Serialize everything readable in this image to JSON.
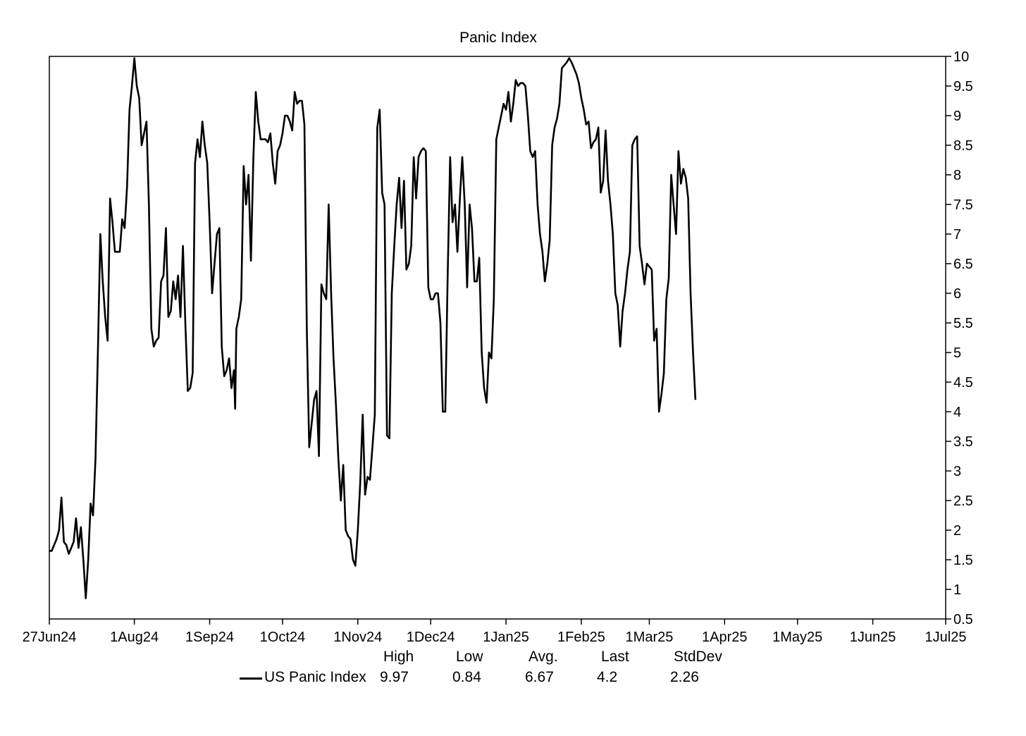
{
  "chart_data": {
    "type": "line",
    "title": "Panic Index",
    "xlabel": "",
    "ylabel": "",
    "x_start": "27Jun24",
    "x_end": "1Jul25",
    "x_ticks": [
      {
        "label": "27Jun24",
        "day": 0
      },
      {
        "label": "1Aug24",
        "day": 35
      },
      {
        "label": "1Sep24",
        "day": 66
      },
      {
        "label": "1Oct24",
        "day": 96
      },
      {
        "label": "1Nov24",
        "day": 127
      },
      {
        "label": "1Dec24",
        "day": 157
      },
      {
        "label": "1Jan25",
        "day": 188
      },
      {
        "label": "1Feb25",
        "day": 219
      },
      {
        "label": "1Mar25",
        "day": 247
      },
      {
        "label": "1Apr25",
        "day": 278
      },
      {
        "label": "1May25",
        "day": 308
      },
      {
        "label": "1Jun25",
        "day": 339
      },
      {
        "label": "1Jul25",
        "day": 369
      }
    ],
    "xlim": [
      0,
      369
    ],
    "ylim": [
      0.5,
      10
    ],
    "y_ticks": [
      "0.5",
      "1",
      "1.5",
      "2",
      "2.5",
      "3",
      "3.5",
      "4",
      "4.5",
      "5",
      "5.5",
      "6",
      "6.5",
      "7",
      "7.5",
      "8",
      "8.5",
      "9",
      "9.5",
      "10"
    ],
    "y_axis_side": "right",
    "grid": false,
    "legend": "bottom",
    "series": [
      {
        "name": "US Panic Index",
        "color": "#000000",
        "points": [
          [
            0,
            1.65
          ],
          [
            1,
            1.65
          ],
          [
            3,
            1.85
          ],
          [
            4,
            2.0
          ],
          [
            5,
            2.55
          ],
          [
            6,
            1.8
          ],
          [
            7,
            1.75
          ],
          [
            8,
            1.6
          ],
          [
            10,
            1.8
          ],
          [
            11,
            2.2
          ],
          [
            12,
            1.7
          ],
          [
            13,
            2.05
          ],
          [
            14,
            1.5
          ],
          [
            15,
            0.85
          ],
          [
            16,
            1.5
          ],
          [
            17,
            2.45
          ],
          [
            18,
            2.25
          ],
          [
            19,
            3.2
          ],
          [
            20,
            5.0
          ],
          [
            21,
            7.0
          ],
          [
            22,
            6.2
          ],
          [
            23,
            5.6
          ],
          [
            24,
            5.2
          ],
          [
            25,
            7.6
          ],
          [
            26,
            7.2
          ],
          [
            27,
            6.7
          ],
          [
            28,
            6.7
          ],
          [
            29,
            6.7
          ],
          [
            30,
            7.25
          ],
          [
            31,
            7.1
          ],
          [
            32,
            7.8
          ],
          [
            33,
            9.1
          ],
          [
            34,
            9.5
          ],
          [
            35,
            9.97
          ],
          [
            36,
            9.5
          ],
          [
            37,
            9.3
          ],
          [
            38,
            8.5
          ],
          [
            39,
            8.7
          ],
          [
            40,
            8.9
          ],
          [
            41,
            7.5
          ],
          [
            42,
            5.4
          ],
          [
            43,
            5.1
          ],
          [
            44,
            5.2
          ],
          [
            45,
            5.25
          ],
          [
            46,
            6.2
          ],
          [
            47,
            6.3
          ],
          [
            48,
            7.1
          ],
          [
            49,
            5.6
          ],
          [
            50,
            5.7
          ],
          [
            51,
            6.2
          ],
          [
            52,
            5.9
          ],
          [
            53,
            6.3
          ],
          [
            54,
            5.6
          ],
          [
            55,
            6.8
          ],
          [
            56,
            5.5
          ],
          [
            57,
            4.35
          ],
          [
            58,
            4.4
          ],
          [
            59,
            4.65
          ],
          [
            60,
            8.2
          ],
          [
            61,
            8.6
          ],
          [
            62,
            8.3
          ],
          [
            63,
            8.9
          ],
          [
            64,
            8.5
          ],
          [
            65,
            8.2
          ],
          [
            66,
            7.2
          ],
          [
            67,
            6.0
          ],
          [
            68,
            6.5
          ],
          [
            69,
            7.0
          ],
          [
            70,
            7.1
          ],
          [
            71,
            5.1
          ],
          [
            72,
            4.6
          ],
          [
            73,
            4.7
          ],
          [
            74,
            4.9
          ],
          [
            75,
            4.4
          ],
          [
            76,
            4.7
          ],
          [
            76.5,
            4.05
          ],
          [
            77,
            5.4
          ],
          [
            78,
            5.6
          ],
          [
            79,
            5.9
          ],
          [
            80,
            8.15
          ],
          [
            81,
            7.5
          ],
          [
            82,
            8.0
          ],
          [
            83,
            6.55
          ],
          [
            84,
            8.3
          ],
          [
            85,
            9.4
          ],
          [
            86,
            8.9
          ],
          [
            87,
            8.6
          ],
          [
            88,
            8.6
          ],
          [
            89,
            8.6
          ],
          [
            90,
            8.55
          ],
          [
            91,
            8.7
          ],
          [
            92,
            8.2
          ],
          [
            93,
            7.85
          ],
          [
            94,
            8.4
          ],
          [
            95,
            8.5
          ],
          [
            96,
            8.7
          ],
          [
            97,
            9.0
          ],
          [
            98,
            9.0
          ],
          [
            99,
            8.9
          ],
          [
            100,
            8.75
          ],
          [
            101,
            9.4
          ],
          [
            102,
            9.2
          ],
          [
            103,
            9.25
          ],
          [
            104,
            9.25
          ],
          [
            105,
            8.85
          ],
          [
            106,
            5.4
          ],
          [
            107,
            3.4
          ],
          [
            108,
            3.8
          ],
          [
            109,
            4.2
          ],
          [
            110,
            4.35
          ],
          [
            111,
            3.25
          ],
          [
            112,
            6.15
          ],
          [
            113,
            6.0
          ],
          [
            114,
            5.9
          ],
          [
            115,
            7.5
          ],
          [
            116,
            6.0
          ],
          [
            117,
            4.9
          ],
          [
            118,
            4.1
          ],
          [
            119,
            3.2
          ],
          [
            120,
            2.5
          ],
          [
            121,
            3.1
          ],
          [
            122,
            2.0
          ],
          [
            123,
            1.9
          ],
          [
            124,
            1.85
          ],
          [
            125,
            1.5
          ],
          [
            126,
            1.4
          ],
          [
            127,
            2.0
          ],
          [
            128,
            2.8
          ],
          [
            129,
            3.95
          ],
          [
            130,
            2.6
          ],
          [
            131,
            2.9
          ],
          [
            132,
            2.85
          ],
          [
            133,
            3.4
          ],
          [
            134,
            3.95
          ],
          [
            135,
            8.8
          ],
          [
            136,
            9.1
          ],
          [
            137,
            7.7
          ],
          [
            138,
            7.5
          ],
          [
            139,
            3.6
          ],
          [
            140,
            3.55
          ],
          [
            141,
            6.0
          ],
          [
            142,
            6.8
          ],
          [
            143,
            7.5
          ],
          [
            144,
            7.95
          ],
          [
            145,
            7.1
          ],
          [
            146,
            7.9
          ],
          [
            147,
            6.4
          ],
          [
            148,
            6.5
          ],
          [
            149,
            6.8
          ],
          [
            150,
            8.3
          ],
          [
            151,
            7.6
          ],
          [
            152,
            8.3
          ],
          [
            153,
            8.4
          ],
          [
            154,
            8.45
          ],
          [
            155,
            8.4
          ],
          [
            156,
            6.1
          ],
          [
            157,
            5.9
          ],
          [
            158,
            5.9
          ],
          [
            159,
            6.0
          ],
          [
            160,
            6.0
          ],
          [
            161,
            5.5
          ],
          [
            162,
            4.0
          ],
          [
            163,
            4.0
          ],
          [
            164,
            6.3
          ],
          [
            165,
            8.3
          ],
          [
            166,
            7.2
          ],
          [
            167,
            7.5
          ],
          [
            168,
            6.7
          ],
          [
            169,
            7.6
          ],
          [
            170,
            8.3
          ],
          [
            171,
            7.5
          ],
          [
            172,
            6.1
          ],
          [
            173,
            7.5
          ],
          [
            174,
            7.1
          ],
          [
            175,
            6.2
          ],
          [
            176,
            6.2
          ],
          [
            177,
            6.6
          ],
          [
            178,
            5.0
          ],
          [
            179,
            4.4
          ],
          [
            180,
            4.15
          ],
          [
            181,
            5.0
          ],
          [
            182,
            4.9
          ],
          [
            183,
            5.9
          ],
          [
            184,
            8.6
          ],
          [
            185,
            8.8
          ],
          [
            186,
            9.0
          ],
          [
            187,
            9.2
          ],
          [
            188,
            9.1
          ],
          [
            189,
            9.4
          ],
          [
            190,
            8.9
          ],
          [
            191,
            9.2
          ],
          [
            192,
            9.6
          ],
          [
            193,
            9.5
          ],
          [
            194,
            9.55
          ],
          [
            195,
            9.55
          ],
          [
            196,
            9.5
          ],
          [
            197,
            9.0
          ],
          [
            198,
            8.4
          ],
          [
            199,
            8.3
          ],
          [
            200,
            8.4
          ],
          [
            201,
            7.5
          ],
          [
            202,
            7.0
          ],
          [
            203,
            6.7
          ],
          [
            204,
            6.2
          ],
          [
            205,
            6.5
          ],
          [
            206,
            6.9
          ],
          [
            207,
            8.5
          ],
          [
            208,
            8.8
          ],
          [
            209,
            8.95
          ],
          [
            210,
            9.2
          ],
          [
            211,
            9.8
          ],
          [
            212,
            9.85
          ],
          [
            213,
            9.9
          ],
          [
            214,
            9.97
          ],
          [
            215,
            9.9
          ],
          [
            216,
            9.8
          ],
          [
            217,
            9.7
          ],
          [
            218,
            9.55
          ],
          [
            219,
            9.3
          ],
          [
            220,
            9.1
          ],
          [
            221,
            8.85
          ],
          [
            222,
            8.9
          ],
          [
            223,
            8.45
          ],
          [
            224,
            8.55
          ],
          [
            225,
            8.6
          ],
          [
            226,
            8.8
          ],
          [
            227,
            7.7
          ],
          [
            228,
            7.9
          ],
          [
            229,
            8.75
          ],
          [
            230,
            7.9
          ],
          [
            231,
            7.5
          ],
          [
            232,
            7.0
          ],
          [
            233,
            6.0
          ],
          [
            234,
            5.8
          ],
          [
            235,
            5.1
          ],
          [
            236,
            5.7
          ],
          [
            237,
            6.0
          ],
          [
            238,
            6.4
          ],
          [
            239,
            6.7
          ],
          [
            240,
            8.5
          ],
          [
            241,
            8.6
          ],
          [
            242,
            8.65
          ],
          [
            243,
            6.8
          ],
          [
            244,
            6.5
          ],
          [
            245,
            6.15
          ],
          [
            246,
            6.5
          ],
          [
            247,
            6.45
          ],
          [
            248,
            6.4
          ],
          [
            249,
            5.2
          ],
          [
            250,
            5.4
          ],
          [
            251,
            4.0
          ],
          [
            252,
            4.3
          ],
          [
            253,
            4.65
          ],
          [
            254,
            5.9
          ],
          [
            255,
            6.25
          ],
          [
            256,
            8.0
          ],
          [
            257,
            7.5
          ],
          [
            258,
            7.0
          ],
          [
            259,
            8.4
          ],
          [
            260,
            7.85
          ],
          [
            261,
            8.1
          ],
          [
            262,
            7.95
          ],
          [
            263,
            7.6
          ],
          [
            264,
            6.0
          ],
          [
            265,
            5.0
          ],
          [
            266,
            4.2
          ]
        ]
      }
    ],
    "stats": {
      "headers": [
        "High",
        "Low",
        "Avg.",
        "Last",
        "StdDev"
      ],
      "values": [
        "9.97",
        "0.84",
        "6.67",
        "4.2",
        "2.26"
      ]
    }
  }
}
